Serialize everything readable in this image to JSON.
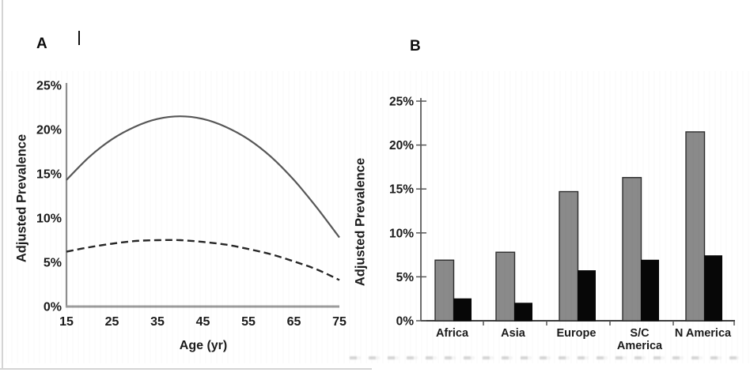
{
  "figure": {
    "panel_a_label": "A",
    "panel_b_label": "B",
    "background": "#ffffff",
    "page_border_color": "#d4d4d4",
    "text_color": "#1b1b1b"
  },
  "chart_data": [
    {
      "id": "panel-a-age-curves",
      "type": "line",
      "title": "",
      "xlabel": "Age (yr)",
      "ylabel": "Adjusted Prevalence",
      "xlim": [
        15,
        75
      ],
      "ylim": [
        0,
        25
      ],
      "grid": false,
      "legend": "none",
      "x_ticks": [
        15,
        25,
        35,
        45,
        55,
        65,
        75
      ],
      "y_ticks": [
        0,
        5,
        10,
        15,
        20,
        25
      ],
      "y_tick_suffix": "%",
      "series": [
        {
          "name": "higher-prevalence-curve",
          "line_style": "solid",
          "color": "#575757",
          "x": [
            15,
            20,
            25,
            30,
            35,
            40,
            45,
            50,
            55,
            60,
            65,
            70,
            75
          ],
          "y": [
            14.3,
            16.9,
            18.9,
            20.3,
            21.2,
            21.5,
            21.2,
            20.3,
            18.9,
            16.9,
            14.3,
            11.2,
            7.8
          ]
        },
        {
          "name": "lower-prevalence-curve",
          "line_style": "dashed",
          "color": "#262626",
          "x": [
            15,
            20,
            25,
            30,
            35,
            40,
            45,
            50,
            55,
            60,
            65,
            70,
            75
          ],
          "y": [
            6.2,
            6.7,
            7.1,
            7.4,
            7.5,
            7.5,
            7.3,
            7.0,
            6.5,
            5.9,
            5.1,
            4.2,
            3.0
          ]
        }
      ]
    },
    {
      "id": "panel-b-region-bars",
      "type": "bar",
      "title": "",
      "xlabel": "",
      "ylabel": "Adjusted Prevalence",
      "ylim": [
        0,
        25
      ],
      "grid": false,
      "legend": "none",
      "y_ticks": [
        0,
        5,
        10,
        15,
        20,
        25
      ],
      "y_tick_suffix": "%",
      "categories": [
        "Africa",
        "Asia",
        "Europe",
        "S/C America",
        "N America"
      ],
      "category_label_lines": [
        [
          "Africa"
        ],
        [
          "Asia"
        ],
        [
          "Europe"
        ],
        [
          "S/C",
          "America"
        ],
        [
          "N America"
        ]
      ],
      "series": [
        {
          "name": "gray-bars",
          "color": "#8a8a8a",
          "border_color": "#2e2e2e",
          "values": [
            6.9,
            7.8,
            14.7,
            16.3,
            21.5
          ]
        },
        {
          "name": "black-bars",
          "color": "#070707",
          "border_color": "#070707",
          "values": [
            2.5,
            2.0,
            5.7,
            6.9,
            7.4
          ]
        }
      ]
    }
  ]
}
